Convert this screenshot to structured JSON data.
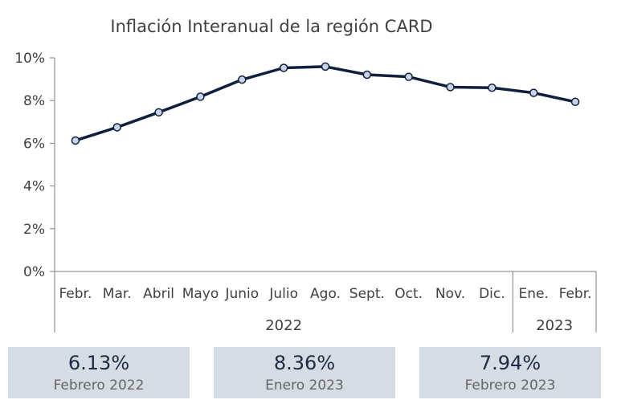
{
  "chart_data": {
    "type": "line",
    "title": "Inflación Interanual de la región CARD",
    "categories": [
      "Febr.",
      "Mar.",
      "Abril",
      "Mayo",
      "Junio",
      "Julio",
      "Ago.",
      "Sept.",
      "Oct.",
      "Nov.",
      "Dic.",
      "Ene.",
      "Febr."
    ],
    "year_groups": [
      {
        "label": "2022"
      },
      {
        "label": "2023"
      }
    ],
    "values": [
      6.13,
      6.75,
      7.45,
      8.18,
      8.98,
      9.53,
      9.59,
      9.21,
      9.11,
      8.63,
      8.6,
      8.36,
      7.94
    ],
    "ylim": [
      0,
      10
    ],
    "yticks": [
      "0%",
      "2%",
      "4%",
      "6%",
      "8%",
      "10%"
    ],
    "line_color": "#0f1f3d",
    "marker_fill": "#c9d3e6",
    "grid": false
  },
  "cards": [
    {
      "value": "6.13%",
      "label": "Febrero 2022"
    },
    {
      "value": "8.36%",
      "label": "Enero 2023"
    },
    {
      "value": "7.94%",
      "label": "Febrero 2023"
    }
  ]
}
